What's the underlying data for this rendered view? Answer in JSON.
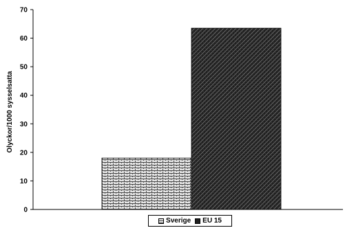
{
  "chart_data": {
    "type": "bar",
    "categories": [
      ""
    ],
    "series": [
      {
        "name": "Sverige",
        "values": [
          18
        ],
        "color": "#d8d8d8",
        "pattern": "brick-light"
      },
      {
        "name": "EU 15",
        "values": [
          63.5
        ],
        "color": "#2a2a2a",
        "pattern": "weave-dark"
      }
    ],
    "title": "",
    "xlabel": "",
    "ylabel": "Olyckor/1000 sysselsatta",
    "ylim": [
      0,
      70
    ],
    "yticks": [
      0,
      10,
      20,
      30,
      40,
      50,
      60,
      70
    ],
    "grid": false,
    "legend_position": "bottom"
  }
}
